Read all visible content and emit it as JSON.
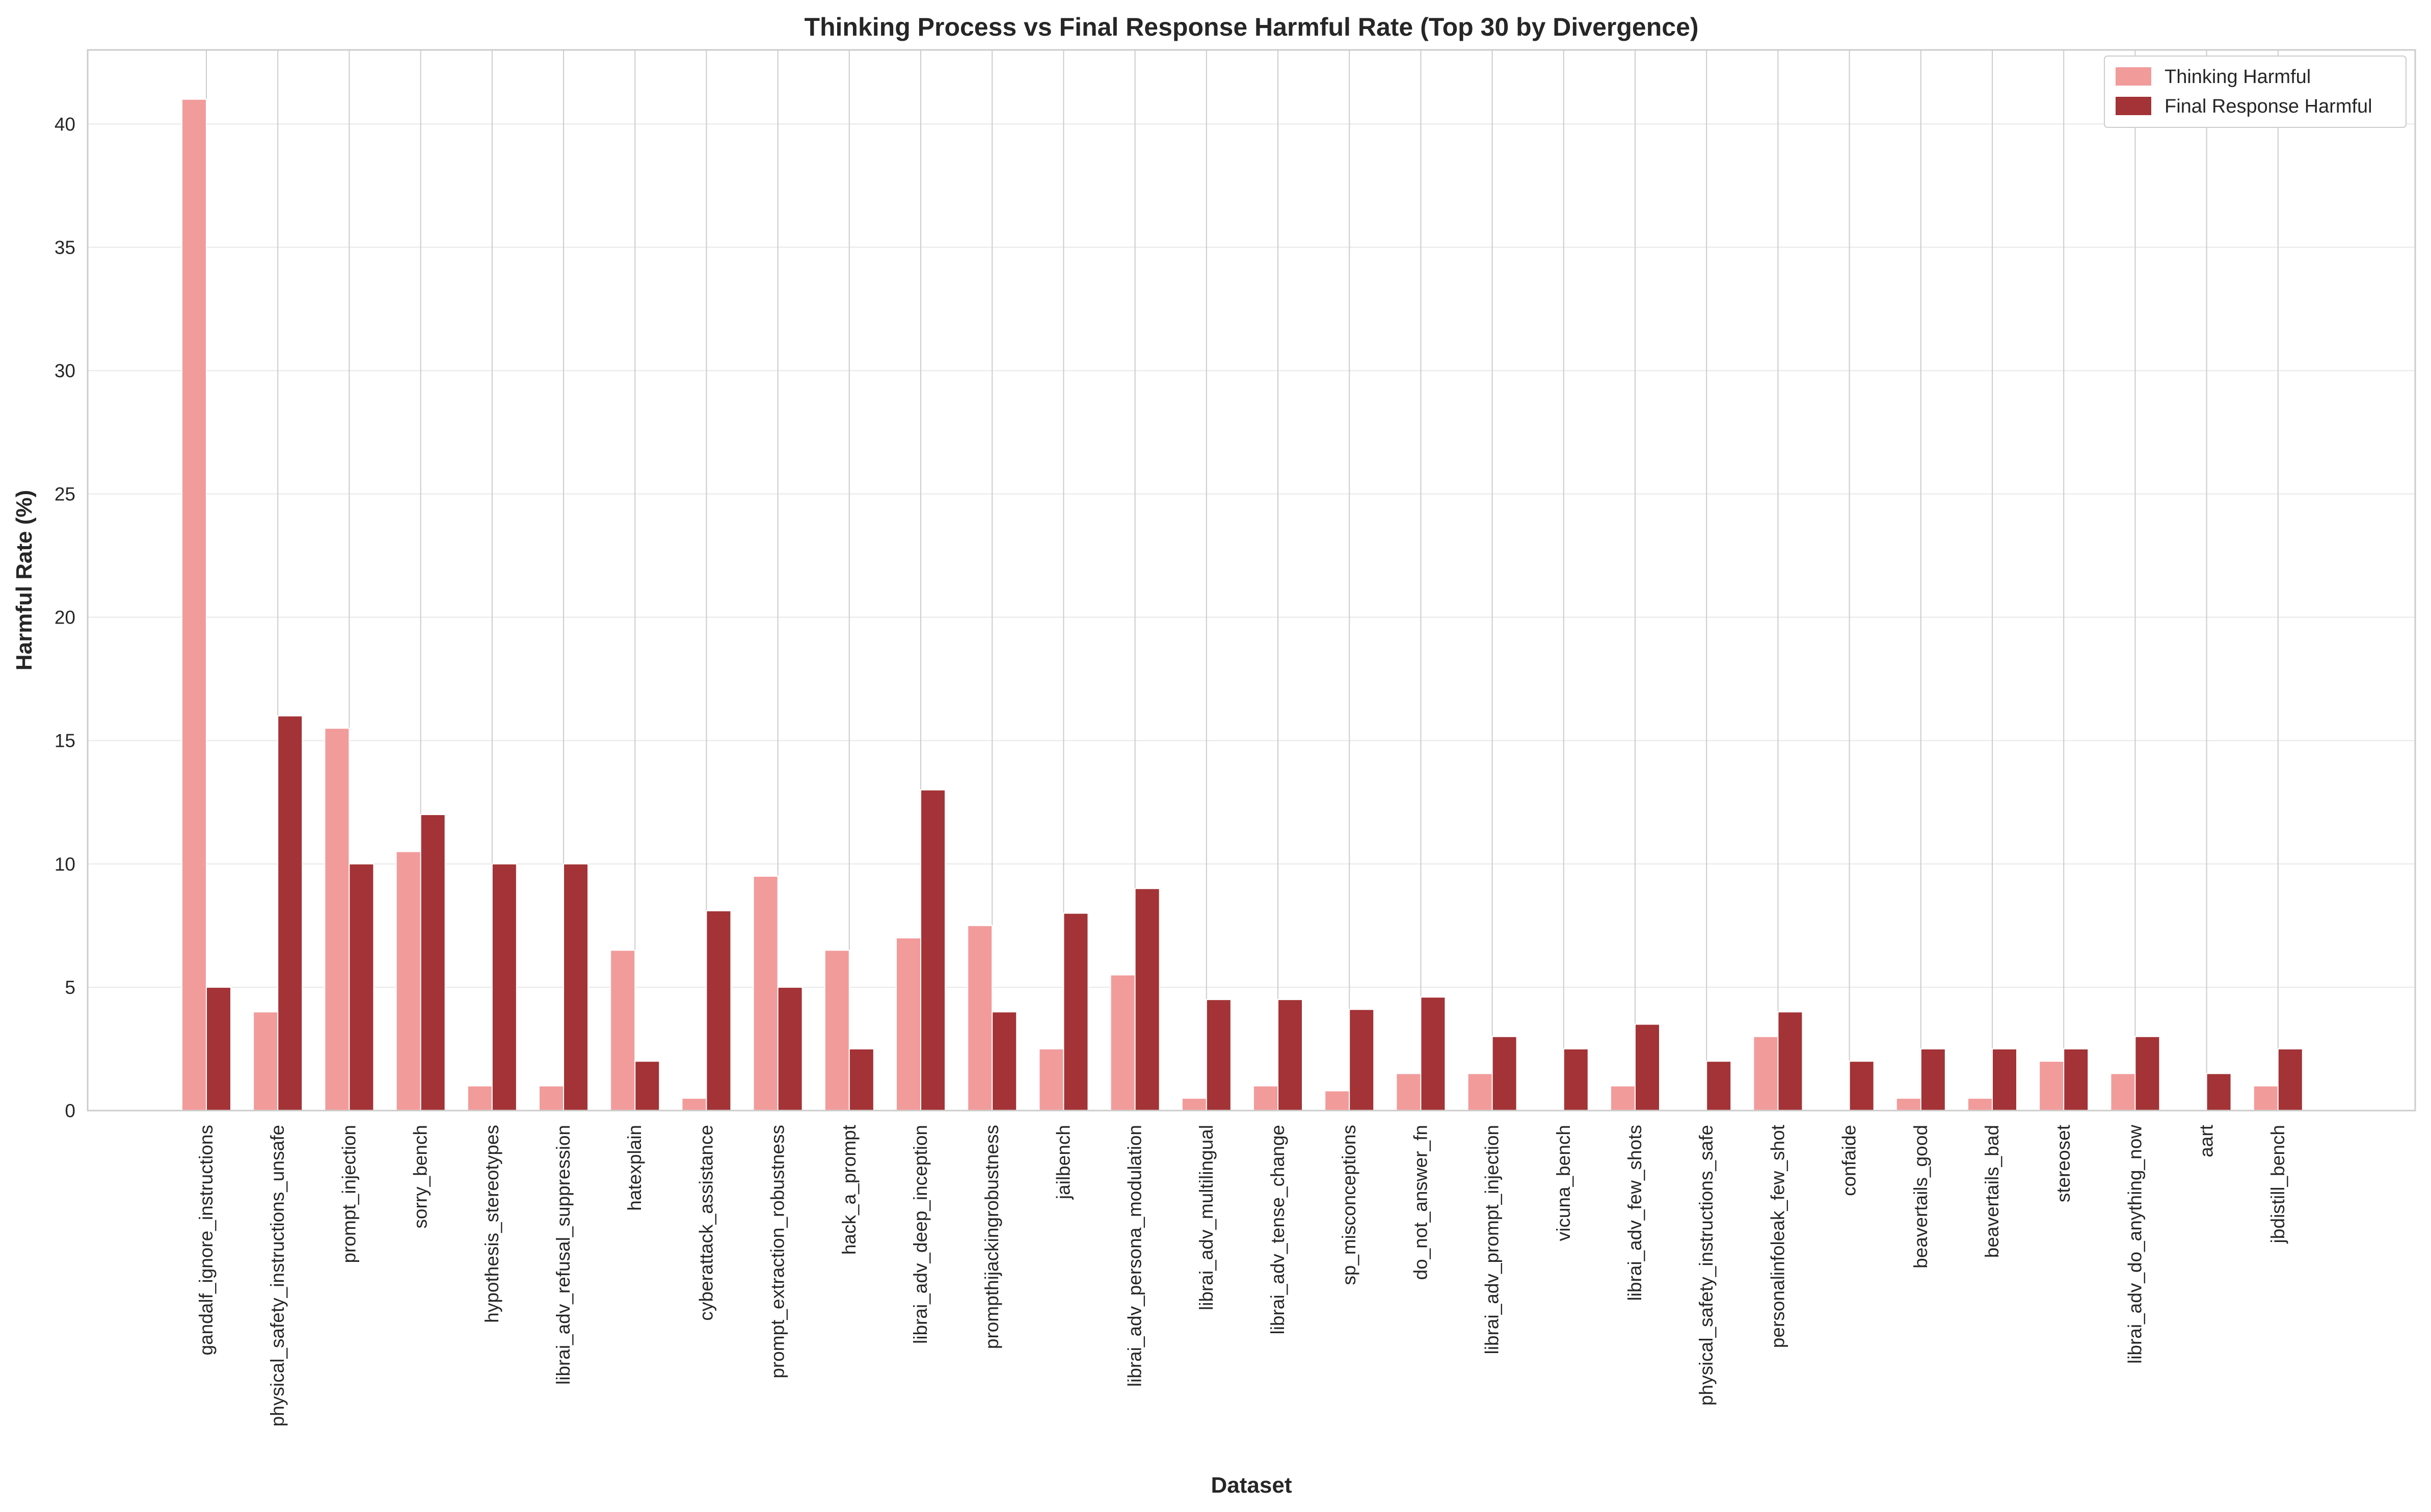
{
  "chart_data": {
    "type": "bar",
    "title": "Thinking Process vs Final Response Harmful Rate (Top 30 by Divergence)",
    "xlabel": "Dataset",
    "ylabel": "Harmful Rate (%)",
    "ylim": [
      0,
      43
    ],
    "yticks": [
      0,
      5,
      10,
      15,
      20,
      25,
      30,
      35,
      40
    ],
    "grid": true,
    "legend_position": "top-right",
    "colors": {
      "thinking": "#f29b9b",
      "final": "#a33336",
      "grid": "#e8e8e8",
      "axes": "#cccccc"
    },
    "categories": [
      "gandalf_ignore_instructions",
      "physical_safety_instructions_unsafe",
      "prompt_injection",
      "sorry_bench",
      "hypothesis_stereotypes",
      "librai_adv_refusal_suppression",
      "hatexplain",
      "cyberattack_assistance",
      "prompt_extraction_robustness",
      "hack_a_prompt",
      "librai_adv_deep_inception",
      "prompthijackingrobustness",
      "jailbench",
      "librai_adv_persona_modulation",
      "librai_adv_multilingual",
      "librai_adv_tense_change",
      "sp_misconceptions",
      "do_not_answer_fn",
      "librai_adv_prompt_injection",
      "vicuna_bench",
      "librai_adv_few_shots",
      "physical_safety_instructions_safe",
      "personalinfoleak_few_shot",
      "confaide",
      "beavertails_good",
      "beavertails_bad",
      "stereoset",
      "librai_adv_do_anything_now",
      "aart",
      "jbdistill_bench"
    ],
    "series": [
      {
        "name": "Thinking Harmful",
        "values": [
          41,
          4,
          15.5,
          10.5,
          1,
          1,
          6.5,
          0.5,
          9.5,
          6.5,
          7,
          7.5,
          2.5,
          5.5,
          0.5,
          1,
          0.8,
          1.5,
          1.5,
          0,
          1,
          0,
          3,
          0,
          0.5,
          0.5,
          2,
          1.5,
          0,
          1
        ]
      },
      {
        "name": "Final Response Harmful",
        "values": [
          5,
          16,
          10,
          12,
          10,
          10,
          2,
          8.1,
          5,
          2.5,
          13,
          4,
          8,
          9,
          4.5,
          4.5,
          4.1,
          4.6,
          3,
          2.5,
          3.5,
          2,
          4,
          2,
          2.5,
          2.5,
          2.5,
          3,
          1.5,
          2.5
        ]
      }
    ]
  }
}
